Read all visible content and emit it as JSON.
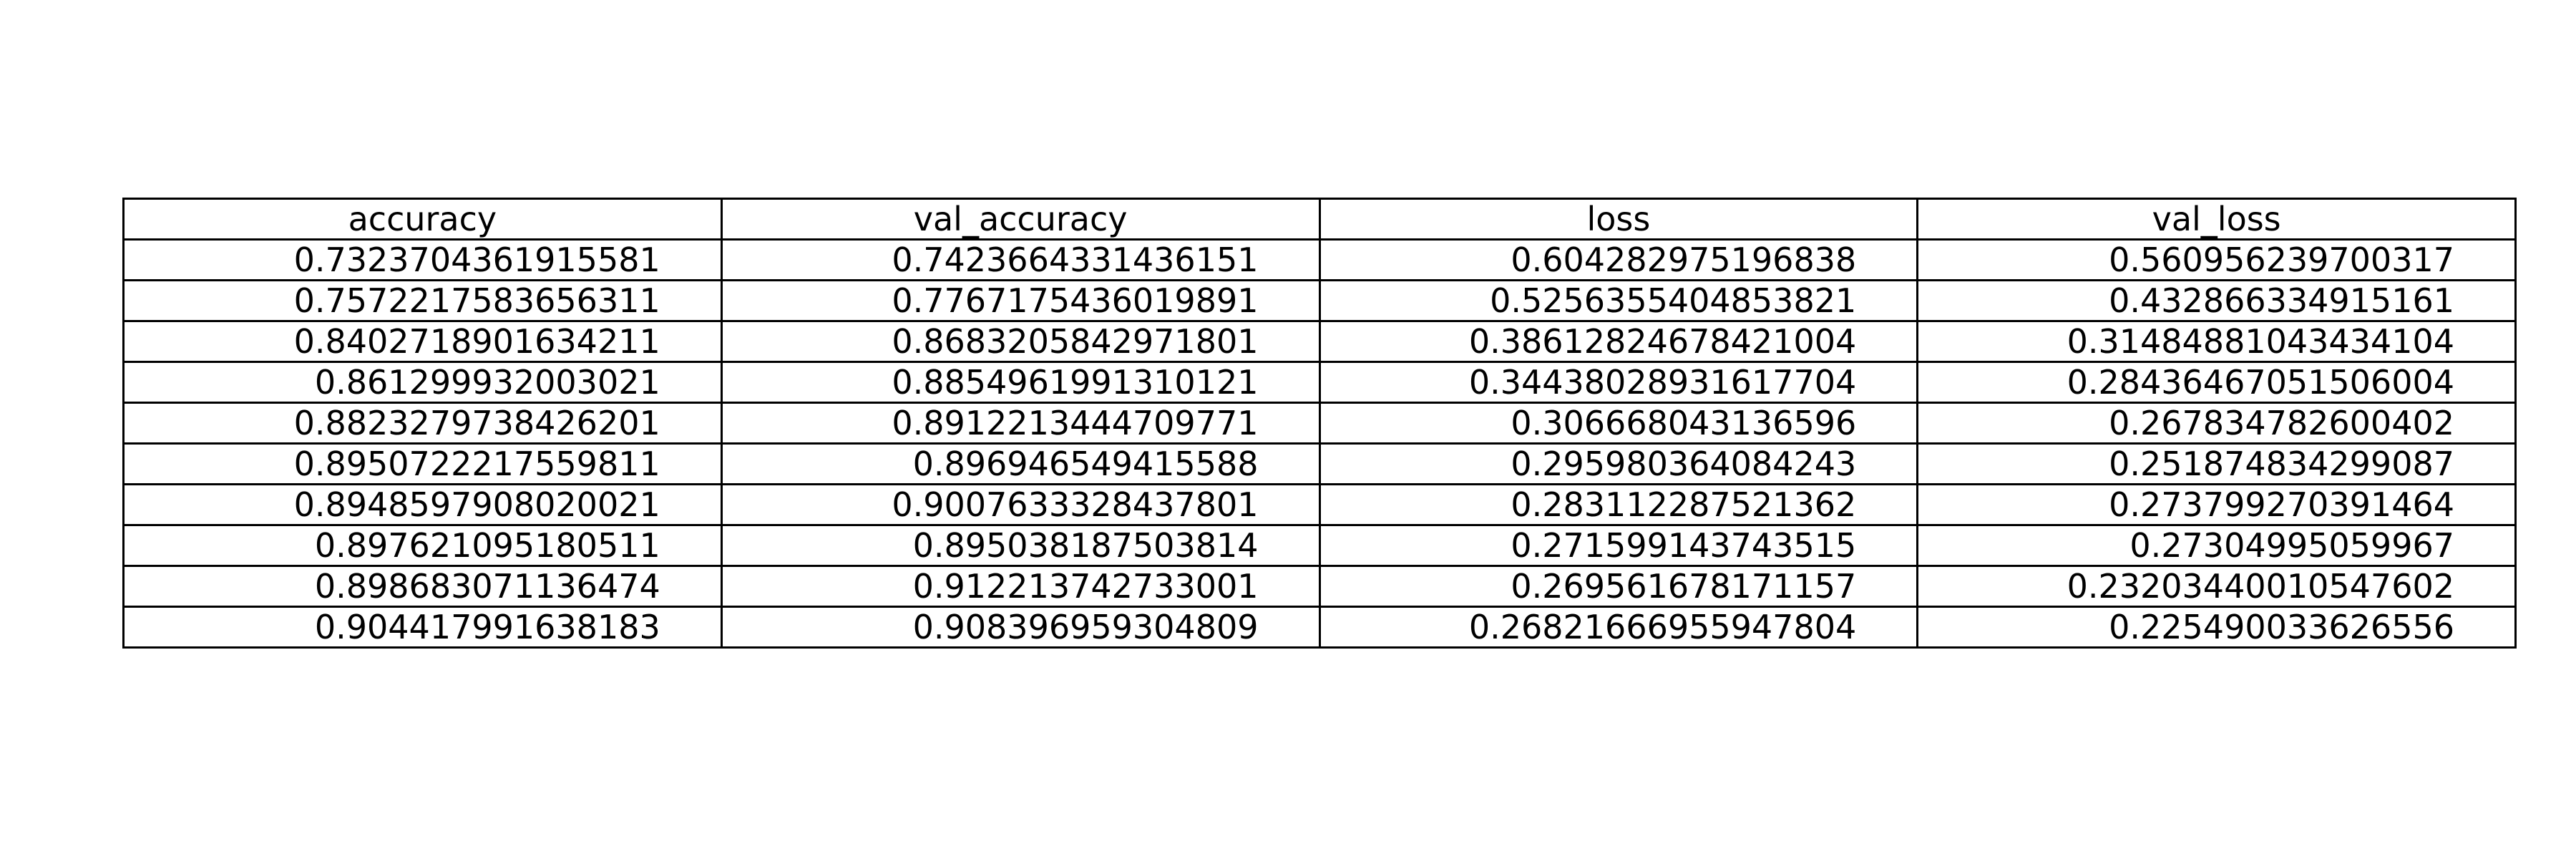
{
  "chart_data": {
    "type": "table",
    "columns": [
      "accuracy",
      "val_accuracy",
      "loss",
      "val_loss"
    ],
    "rows": [
      [
        "0.7323704361915581",
        "0.7423664331436151",
        "0.604282975196838",
        "0.560956239700317"
      ],
      [
        "0.7572217583656311",
        "0.7767175436019891",
        "0.5256355404853821",
        "0.432866334915161"
      ],
      [
        "0.8402718901634211",
        "0.8683205842971801",
        "0.38612824678421004",
        "0.31484881043434104"
      ],
      [
        "0.861299932003021",
        "0.8854961991310121",
        "0.34438028931617704",
        "0.28436467051506004"
      ],
      [
        "0.8823279738426201",
        "0.8912213444709771",
        "0.306668043136596",
        "0.267834782600402"
      ],
      [
        "0.8950722217559811",
        "0.896946549415588",
        "0.295980364084243",
        "0.251874834299087"
      ],
      [
        "0.8948597908020021",
        "0.9007633328437801",
        "0.283112287521362",
        "0.273799270391464"
      ],
      [
        "0.897621095180511",
        "0.895038187503814",
        "0.271599143743515",
        "0.27304995059967"
      ],
      [
        "0.898683071136474",
        "0.912213742733001",
        "0.269561678171157",
        "0.23203440010547602"
      ],
      [
        "0.904417991638183",
        "0.908396959304809",
        "0.26821666955947804",
        "0.225490033626556"
      ]
    ],
    "grid": true
  }
}
